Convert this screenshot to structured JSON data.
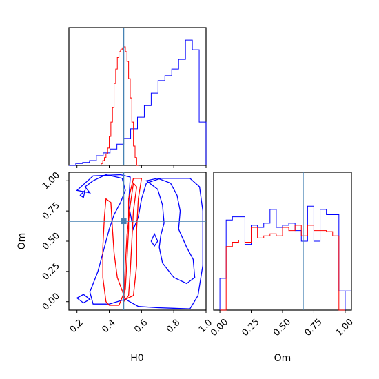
{
  "chart_data": {
    "type": "corner",
    "parameters": [
      "H0",
      "Om"
    ],
    "truth": {
      "H0": 0.49,
      "Om": 0.665
    },
    "colors": {
      "blue": "#0000ff",
      "red": "#ff0000",
      "truth": "#4682b4"
    },
    "panels": [
      {
        "id": "H0-marginal",
        "type": "histogram",
        "xlim": [
          0.15,
          1.0
        ],
        "bin_edges": [
          0.15,
          0.1925,
          0.235,
          0.2775,
          0.32,
          0.3625,
          0.405,
          0.4475,
          0.49,
          0.5325,
          0.575,
          0.6175,
          0.66,
          0.7025,
          0.745,
          0.7875,
          0.83,
          0.8725,
          0.915,
          0.9575,
          1.0
        ],
        "series": [
          {
            "name": "blue",
            "values": [
              0,
              2,
              3,
              5,
              10,
              13,
              17,
              22,
              28,
              38,
              50,
              62,
              75,
              88,
              93,
              100,
              110,
              130,
              120,
              45
            ]
          },
          {
            "name": "red",
            "values": [
              0,
              0,
              0,
              0,
              0,
              0,
              0,
              0,
              0,
              0,
              0,
              0,
              0,
              0,
              0,
              0,
              0,
              0,
              0,
              0
            ]
          }
        ],
        "red_bin_edges": [
          0.35,
          0.36,
          0.37,
          0.38,
          0.39,
          0.4,
          0.41,
          0.42,
          0.43,
          0.44,
          0.45,
          0.46,
          0.47,
          0.48,
          0.49,
          0.5,
          0.51,
          0.52,
          0.53,
          0.54,
          0.55,
          0.56,
          0.57,
          0.58
        ],
        "red_values": [
          2,
          5,
          8,
          12,
          18,
          30,
          45,
          60,
          85,
          100,
          112,
          118,
          120,
          122,
          123,
          118,
          108,
          90,
          70,
          45,
          20,
          8,
          0
        ]
      },
      {
        "id": "Om-marginal",
        "type": "histogram",
        "xlim": [
          -0.05,
          1.05
        ],
        "xticks": [
          "0.00",
          "0.25",
          "0.50",
          "0.75",
          "1.00"
        ],
        "xtick_values": [
          0,
          0.25,
          0.5,
          0.75,
          1.0
        ],
        "bin_edges": [
          0.0,
          0.05,
          0.1,
          0.15,
          0.2,
          0.25,
          0.3,
          0.35,
          0.4,
          0.45,
          0.5,
          0.55,
          0.6,
          0.65,
          0.7,
          0.75,
          0.8,
          0.85,
          0.9,
          0.95,
          1.0
        ],
        "series": [
          {
            "name": "blue",
            "values": [
              30,
              85,
              88,
              88,
              62,
              80,
              78,
              82,
              95,
              78,
              80,
              82,
              75,
              65,
              98,
              65,
              95,
              90,
              90,
              18
            ]
          },
          {
            "name": "red",
            "values": [
              0,
              60,
              64,
              66,
              64,
              78,
              68,
              70,
              72,
              70,
              78,
              75,
              80,
              70,
              80,
              75,
              75,
              74,
              70,
              0
            ]
          }
        ]
      },
      {
        "id": "H0-Om-joint",
        "type": "contour",
        "xlim": [
          0.15,
          1.0
        ],
        "ylim": [
          -0.07,
          1.07
        ],
        "xticks": [
          "0.2",
          "0.4",
          "0.6",
          "0.8",
          "1.0"
        ],
        "xtick_values": [
          0.2,
          0.4,
          0.6,
          0.8,
          1.0
        ],
        "yticks": [
          "0.00",
          "0.25",
          "0.50",
          "0.75",
          "1.00"
        ],
        "ytick_values": [
          0,
          0.25,
          0.5,
          0.75,
          1.0
        ],
        "xlabel": "H0",
        "ylabel": "Om"
      }
    ],
    "xlabel_right": "Om"
  }
}
